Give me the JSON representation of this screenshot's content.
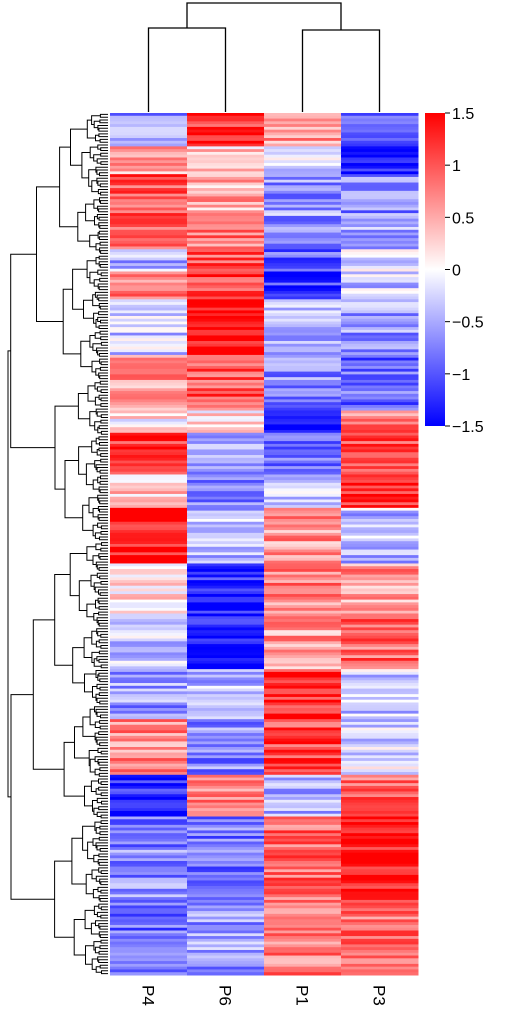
{
  "chart_data": {
    "type": "heatmap",
    "title": "",
    "xlabel": "",
    "ylabel": "",
    "columns": [
      "P4",
      "P6",
      "P1",
      "P3"
    ],
    "colorbar": {
      "ticks": [
        "1.5",
        "1",
        "0.5",
        "0",
        "−0.5",
        "−1",
        "−1.5"
      ],
      "range": [
        -1.5,
        1.5
      ],
      "colors": {
        "low": "#0000ff",
        "mid": "#ffffff",
        "high": "#ff0000"
      }
    },
    "row_dendrogram": true,
    "column_dendrogram": true,
    "n_rows_approx": 300,
    "row_blocks": [
      {
        "rows": 12,
        "values": [
          -0.6,
          1.2,
          0.6,
          -0.9
        ]
      },
      {
        "rows": 10,
        "values": [
          0.5,
          0.3,
          -0.2,
          -1.3
        ]
      },
      {
        "rows": 15,
        "values": [
          1.0,
          0.5,
          -0.6,
          -0.7
        ]
      },
      {
        "rows": 12,
        "values": [
          0.9,
          0.8,
          -0.8,
          -0.6
        ]
      },
      {
        "rows": 8,
        "values": [
          -0.5,
          1.0,
          -0.9,
          -0.1
        ]
      },
      {
        "rows": 10,
        "values": [
          0.7,
          1.1,
          -1.2,
          -0.3
        ]
      },
      {
        "rows": 20,
        "values": [
          -0.3,
          1.5,
          -0.5,
          -0.6
        ]
      },
      {
        "rows": 20,
        "values": [
          0.6,
          1.0,
          -0.7,
          -0.9
        ]
      },
      {
        "rows": 8,
        "values": [
          0.1,
          0.2,
          -1.5,
          0.8
        ]
      },
      {
        "rows": 15,
        "values": [
          1.2,
          -0.5,
          -0.9,
          1.1
        ]
      },
      {
        "rows": 12,
        "values": [
          0.3,
          -0.8,
          -0.4,
          1.3
        ]
      },
      {
        "rows": 20,
        "values": [
          1.4,
          -0.4,
          0.6,
          -0.4
        ]
      },
      {
        "rows": 18,
        "values": [
          0.2,
          -1.3,
          0.7,
          0.6
        ]
      },
      {
        "rows": 20,
        "values": [
          -0.3,
          -1.4,
          0.6,
          0.9
        ]
      },
      {
        "rows": 18,
        "values": [
          -0.6,
          -0.4,
          1.3,
          -0.3
        ]
      },
      {
        "rows": 20,
        "values": [
          0.7,
          -0.7,
          1.1,
          -0.2
        ]
      },
      {
        "rows": 15,
        "values": [
          -1.3,
          0.8,
          -0.5,
          0.9
        ]
      },
      {
        "rows": 30,
        "values": [
          -0.7,
          -0.8,
          0.9,
          1.4
        ]
      },
      {
        "rows": 27,
        "values": [
          -0.9,
          -0.6,
          0.8,
          0.9
        ]
      }
    ]
  }
}
